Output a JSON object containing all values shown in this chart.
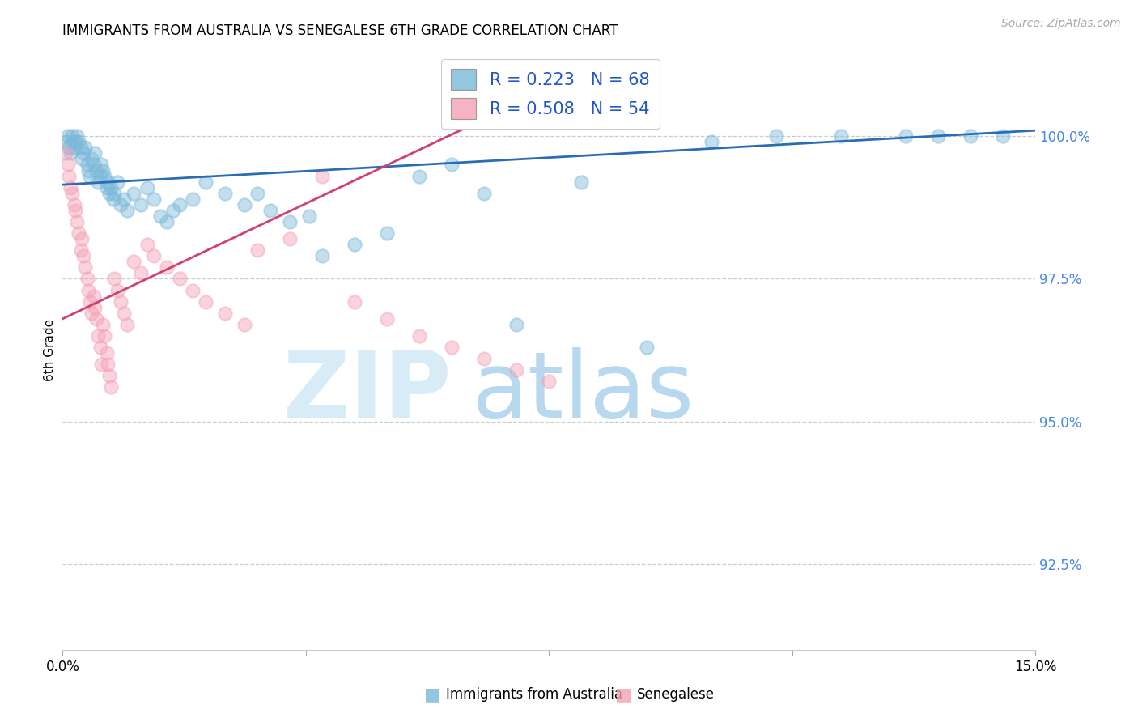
{
  "title": "IMMIGRANTS FROM AUSTRALIA VS SENEGALESE 6TH GRADE CORRELATION CHART",
  "source": "Source: ZipAtlas.com",
  "ylabel": "6th Grade",
  "xmin": 0.0,
  "xmax": 15.0,
  "ymin": 91.0,
  "ymax": 101.5,
  "yticks": [
    92.5,
    95.0,
    97.5,
    100.0
  ],
  "xtick_positions": [
    0.0,
    3.75,
    7.5,
    11.25,
    15.0
  ],
  "blue_color": "#7ab8d9",
  "pink_color": "#f4a0b5",
  "trend_blue_color": "#2a6db5",
  "trend_pink_color": "#d04070",
  "legend_blue_text": "R = 0.223   N = 68",
  "legend_pink_text": "R = 0.508   N = 54",
  "legend_text_color": "#2255cc",
  "ytick_color": "#4488ee",
  "blue_trend_x": [
    0.0,
    15.0
  ],
  "blue_trend_y": [
    99.15,
    100.1
  ],
  "pink_trend_x": [
    0.0,
    6.5
  ],
  "pink_trend_y": [
    96.8,
    100.3
  ],
  "blue_x": [
    0.05,
    0.08,
    0.1,
    0.12,
    0.13,
    0.15,
    0.18,
    0.2,
    0.22,
    0.25,
    0.28,
    0.3,
    0.32,
    0.35,
    0.38,
    0.4,
    0.42,
    0.45,
    0.48,
    0.5,
    0.52,
    0.55,
    0.58,
    0.6,
    0.62,
    0.65,
    0.68,
    0.7,
    0.72,
    0.75,
    0.78,
    0.8,
    0.85,
    0.9,
    0.95,
    1.0,
    1.1,
    1.2,
    1.3,
    1.4,
    1.5,
    1.6,
    1.7,
    1.8,
    2.0,
    2.2,
    2.5,
    2.8,
    3.0,
    3.2,
    3.5,
    3.8,
    4.0,
    4.5,
    5.0,
    5.5,
    6.0,
    6.5,
    7.0,
    8.0,
    9.0,
    10.0,
    11.0,
    12.0,
    13.0,
    13.5,
    14.0,
    14.5
  ],
  "blue_y": [
    99.9,
    100.0,
    99.8,
    99.7,
    99.9,
    100.0,
    99.8,
    99.9,
    100.0,
    99.9,
    99.8,
    99.6,
    99.7,
    99.8,
    99.5,
    99.4,
    99.3,
    99.6,
    99.5,
    99.7,
    99.4,
    99.2,
    99.3,
    99.5,
    99.4,
    99.3,
    99.1,
    99.2,
    99.0,
    99.1,
    98.9,
    99.0,
    99.2,
    98.8,
    98.9,
    98.7,
    99.0,
    98.8,
    99.1,
    98.9,
    98.6,
    98.5,
    98.7,
    98.8,
    98.9,
    99.2,
    99.0,
    98.8,
    99.0,
    98.7,
    98.5,
    98.6,
    97.9,
    98.1,
    98.3,
    99.3,
    99.5,
    99.0,
    96.7,
    99.2,
    96.3,
    99.9,
    100.0,
    100.0,
    100.0,
    100.0,
    100.0,
    100.0
  ],
  "pink_x": [
    0.05,
    0.08,
    0.1,
    0.12,
    0.15,
    0.18,
    0.2,
    0.22,
    0.25,
    0.28,
    0.3,
    0.32,
    0.35,
    0.38,
    0.4,
    0.42,
    0.45,
    0.48,
    0.5,
    0.52,
    0.55,
    0.58,
    0.6,
    0.62,
    0.65,
    0.68,
    0.7,
    0.72,
    0.75,
    0.8,
    0.85,
    0.9,
    0.95,
    1.0,
    1.1,
    1.2,
    1.3,
    1.4,
    1.6,
    1.8,
    2.0,
    2.2,
    2.5,
    2.8,
    3.0,
    3.5,
    4.0,
    4.5,
    5.0,
    5.5,
    6.0,
    6.5,
    7.0,
    7.5
  ],
  "pink_y": [
    99.7,
    99.5,
    99.3,
    99.1,
    99.0,
    98.8,
    98.7,
    98.5,
    98.3,
    98.0,
    98.2,
    97.9,
    97.7,
    97.5,
    97.3,
    97.1,
    96.9,
    97.2,
    97.0,
    96.8,
    96.5,
    96.3,
    96.0,
    96.7,
    96.5,
    96.2,
    96.0,
    95.8,
    95.6,
    97.5,
    97.3,
    97.1,
    96.9,
    96.7,
    97.8,
    97.6,
    98.1,
    97.9,
    97.7,
    97.5,
    97.3,
    97.1,
    96.9,
    96.7,
    98.0,
    98.2,
    99.3,
    97.1,
    96.8,
    96.5,
    96.3,
    96.1,
    95.9,
    95.7
  ]
}
